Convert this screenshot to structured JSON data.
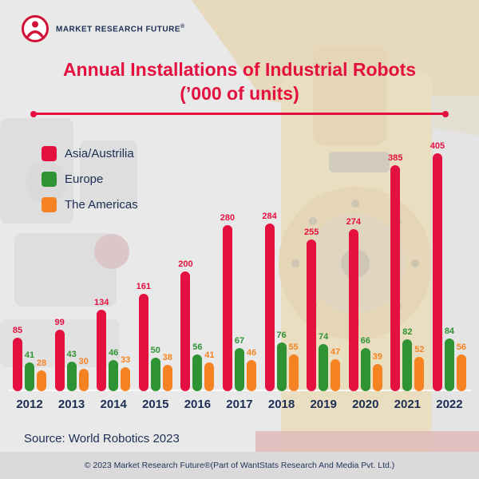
{
  "brand": {
    "name": "MARKET RESEARCH FUTURE",
    "reg": "®"
  },
  "title": {
    "line1": "Annual Installations of Industrial Robots",
    "line2": "(’000 of units)"
  },
  "source_note": "Source: World Robotics 2023",
  "footer_note": "© 2023 Market Research Future®(Part of WantStats Research And Media Pvt. Ltd.)",
  "colors": {
    "title": "#e4103f",
    "text_navy": "#1c2e54",
    "background": "#e9e9e9",
    "footer_bg": "#dadada"
  },
  "chart_data": {
    "type": "bar",
    "title": "Annual Installations of Industrial Robots ('000 of units)",
    "categories": [
      "2012",
      "2013",
      "2014",
      "2015",
      "2016",
      "2017",
      "2018",
      "2019",
      "2020",
      "2021",
      "2022"
    ],
    "series": [
      {
        "name": "Asia/Austrilia",
        "color": "#e4103f",
        "values": [
          85,
          99,
          134,
          161,
          200,
          280,
          284,
          255,
          274,
          385,
          405
        ]
      },
      {
        "name": "Europe",
        "color": "#2f9233",
        "values": [
          41,
          43,
          46,
          50,
          56,
          67,
          76,
          74,
          66,
          82,
          84
        ]
      },
      {
        "name": "The Americas",
        "color": "#f58322",
        "values": [
          28,
          30,
          33,
          38,
          41,
          46,
          55,
          47,
          39,
          52,
          56
        ]
      }
    ],
    "xlabel": "",
    "ylabel": "",
    "ylim": [
      0,
      420
    ],
    "grid": false,
    "legend_position": "top-left",
    "value_labels": "above bars, colored per series"
  }
}
